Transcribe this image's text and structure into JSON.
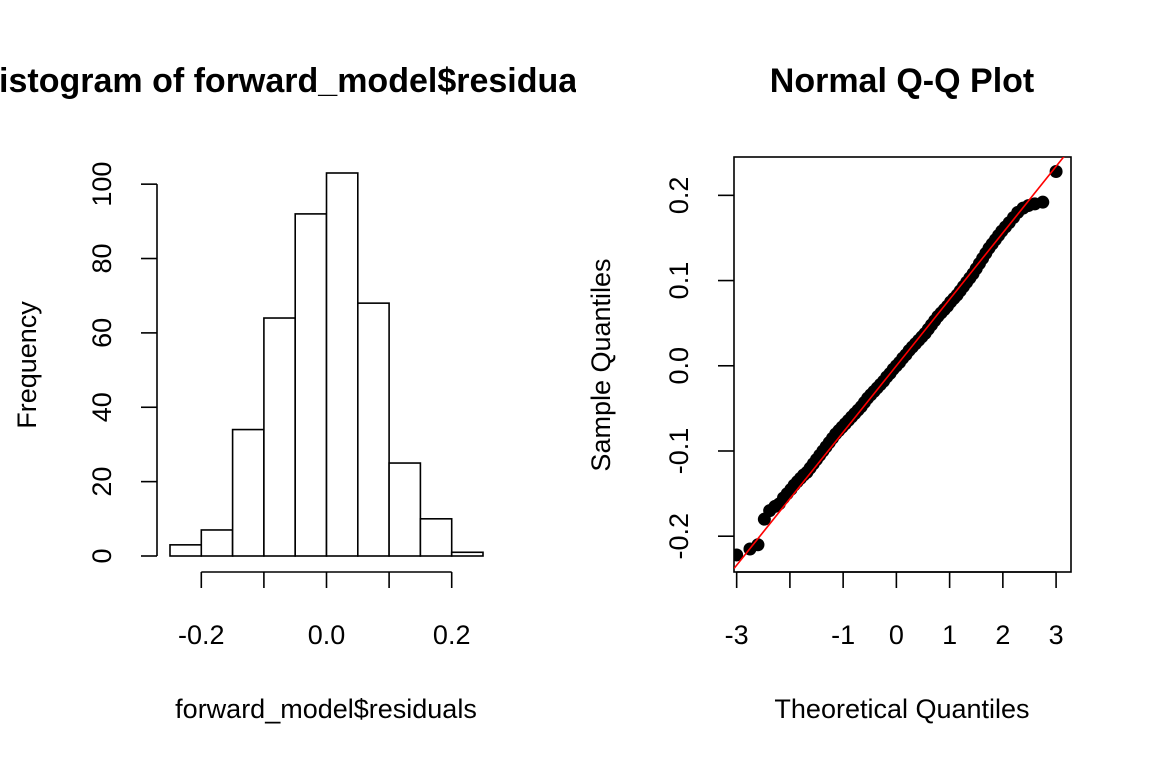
{
  "colors": {
    "background": "#ffffff",
    "stroke": "#000000",
    "bar_fill": "#ffffff",
    "points": "#000000",
    "qq_line": "#ff0000"
  },
  "chart_data": [
    {
      "type": "bar",
      "title": "Histogram of forward_model$residuals",
      "xlabel": "forward_model$residuals",
      "ylabel": "Frequency",
      "bin_edges": [
        -0.25,
        -0.2,
        -0.15,
        -0.1,
        -0.05,
        0.0,
        0.05,
        0.1,
        0.15,
        0.2,
        0.25
      ],
      "values": [
        3,
        7,
        34,
        64,
        92,
        103,
        68,
        25,
        10,
        1
      ],
      "xlim": [
        -0.25,
        0.25
      ],
      "ylim": [
        0,
        103
      ],
      "x_ticks": [
        -0.2,
        -0.1,
        0.0,
        0.1,
        0.2
      ],
      "x_tick_labels": [
        "-0.2",
        "",
        "0.0",
        "",
        "0.2"
      ],
      "y_ticks": [
        0,
        20,
        40,
        60,
        80,
        100
      ],
      "y_tick_labels": [
        "0",
        "20",
        "40",
        "60",
        "80",
        "100"
      ],
      "grid": false,
      "box": false
    },
    {
      "type": "scatter",
      "title": "Normal Q-Q Plot",
      "xlabel": "Theoretical Quantiles",
      "ylabel": "Sample Quantiles",
      "xlim": [
        -3.05,
        3.28
      ],
      "ylim": [
        -0.242,
        0.245
      ],
      "x_ticks": [
        -3,
        -2,
        -1,
        0,
        1,
        2,
        3
      ],
      "x_tick_labels": [
        "-3",
        "",
        "-1",
        "0",
        "1",
        "2",
        "3"
      ],
      "y_ticks": [
        -0.2,
        -0.1,
        0.0,
        0.1,
        0.2
      ],
      "y_tick_labels": [
        "-0.2",
        "-0.1",
        "0.0",
        "0.1",
        "0.2"
      ],
      "grid": false,
      "box": true,
      "reference_line": {
        "intercept": 0.0,
        "slope": 0.078
      },
      "points": {
        "x": [
          -3.0,
          -2.75,
          -2.6,
          -2.48,
          -2.38,
          -2.28,
          -2.2,
          -2.12,
          -2.05,
          -1.98,
          -1.92,
          -1.86,
          -1.8,
          -1.74,
          -1.68,
          -1.62,
          -1.56,
          -1.5,
          -1.44,
          -1.38,
          -1.32,
          -1.26,
          -1.2,
          -1.14,
          -1.08,
          -1.02,
          -0.96,
          -0.9,
          -0.84,
          -0.78,
          -0.72,
          -0.66,
          -0.6,
          -0.54,
          -0.48,
          -0.42,
          -0.36,
          -0.3,
          -0.24,
          -0.18,
          -0.12,
          -0.06,
          0.0,
          0.06,
          0.12,
          0.18,
          0.24,
          0.3,
          0.36,
          0.42,
          0.48,
          0.54,
          0.6,
          0.66,
          0.72,
          0.78,
          0.84,
          0.9,
          0.96,
          1.02,
          1.08,
          1.14,
          1.2,
          1.26,
          1.32,
          1.38,
          1.44,
          1.5,
          1.56,
          1.62,
          1.68,
          1.74,
          1.8,
          1.86,
          1.92,
          1.98,
          2.05,
          2.12,
          2.2,
          2.28,
          2.38,
          2.48,
          2.6,
          2.75,
          3.0
        ],
        "y": [
          -0.222,
          -0.215,
          -0.21,
          -0.18,
          -0.17,
          -0.165,
          -0.162,
          -0.155,
          -0.15,
          -0.145,
          -0.14,
          -0.136,
          -0.132,
          -0.128,
          -0.125,
          -0.12,
          -0.115,
          -0.11,
          -0.105,
          -0.1,
          -0.095,
          -0.09,
          -0.085,
          -0.08,
          -0.076,
          -0.072,
          -0.068,
          -0.064,
          -0.06,
          -0.056,
          -0.052,
          -0.048,
          -0.043,
          -0.038,
          -0.034,
          -0.03,
          -0.026,
          -0.022,
          -0.018,
          -0.013,
          -0.009,
          -0.004,
          0.0,
          0.004,
          0.009,
          0.013,
          0.018,
          0.022,
          0.026,
          0.03,
          0.034,
          0.038,
          0.043,
          0.048,
          0.053,
          0.058,
          0.062,
          0.066,
          0.07,
          0.075,
          0.079,
          0.083,
          0.088,
          0.093,
          0.098,
          0.103,
          0.108,
          0.114,
          0.12,
          0.126,
          0.132,
          0.138,
          0.143,
          0.148,
          0.153,
          0.158,
          0.163,
          0.168,
          0.174,
          0.18,
          0.185,
          0.188,
          0.19,
          0.192,
          0.228
        ]
      }
    }
  ]
}
